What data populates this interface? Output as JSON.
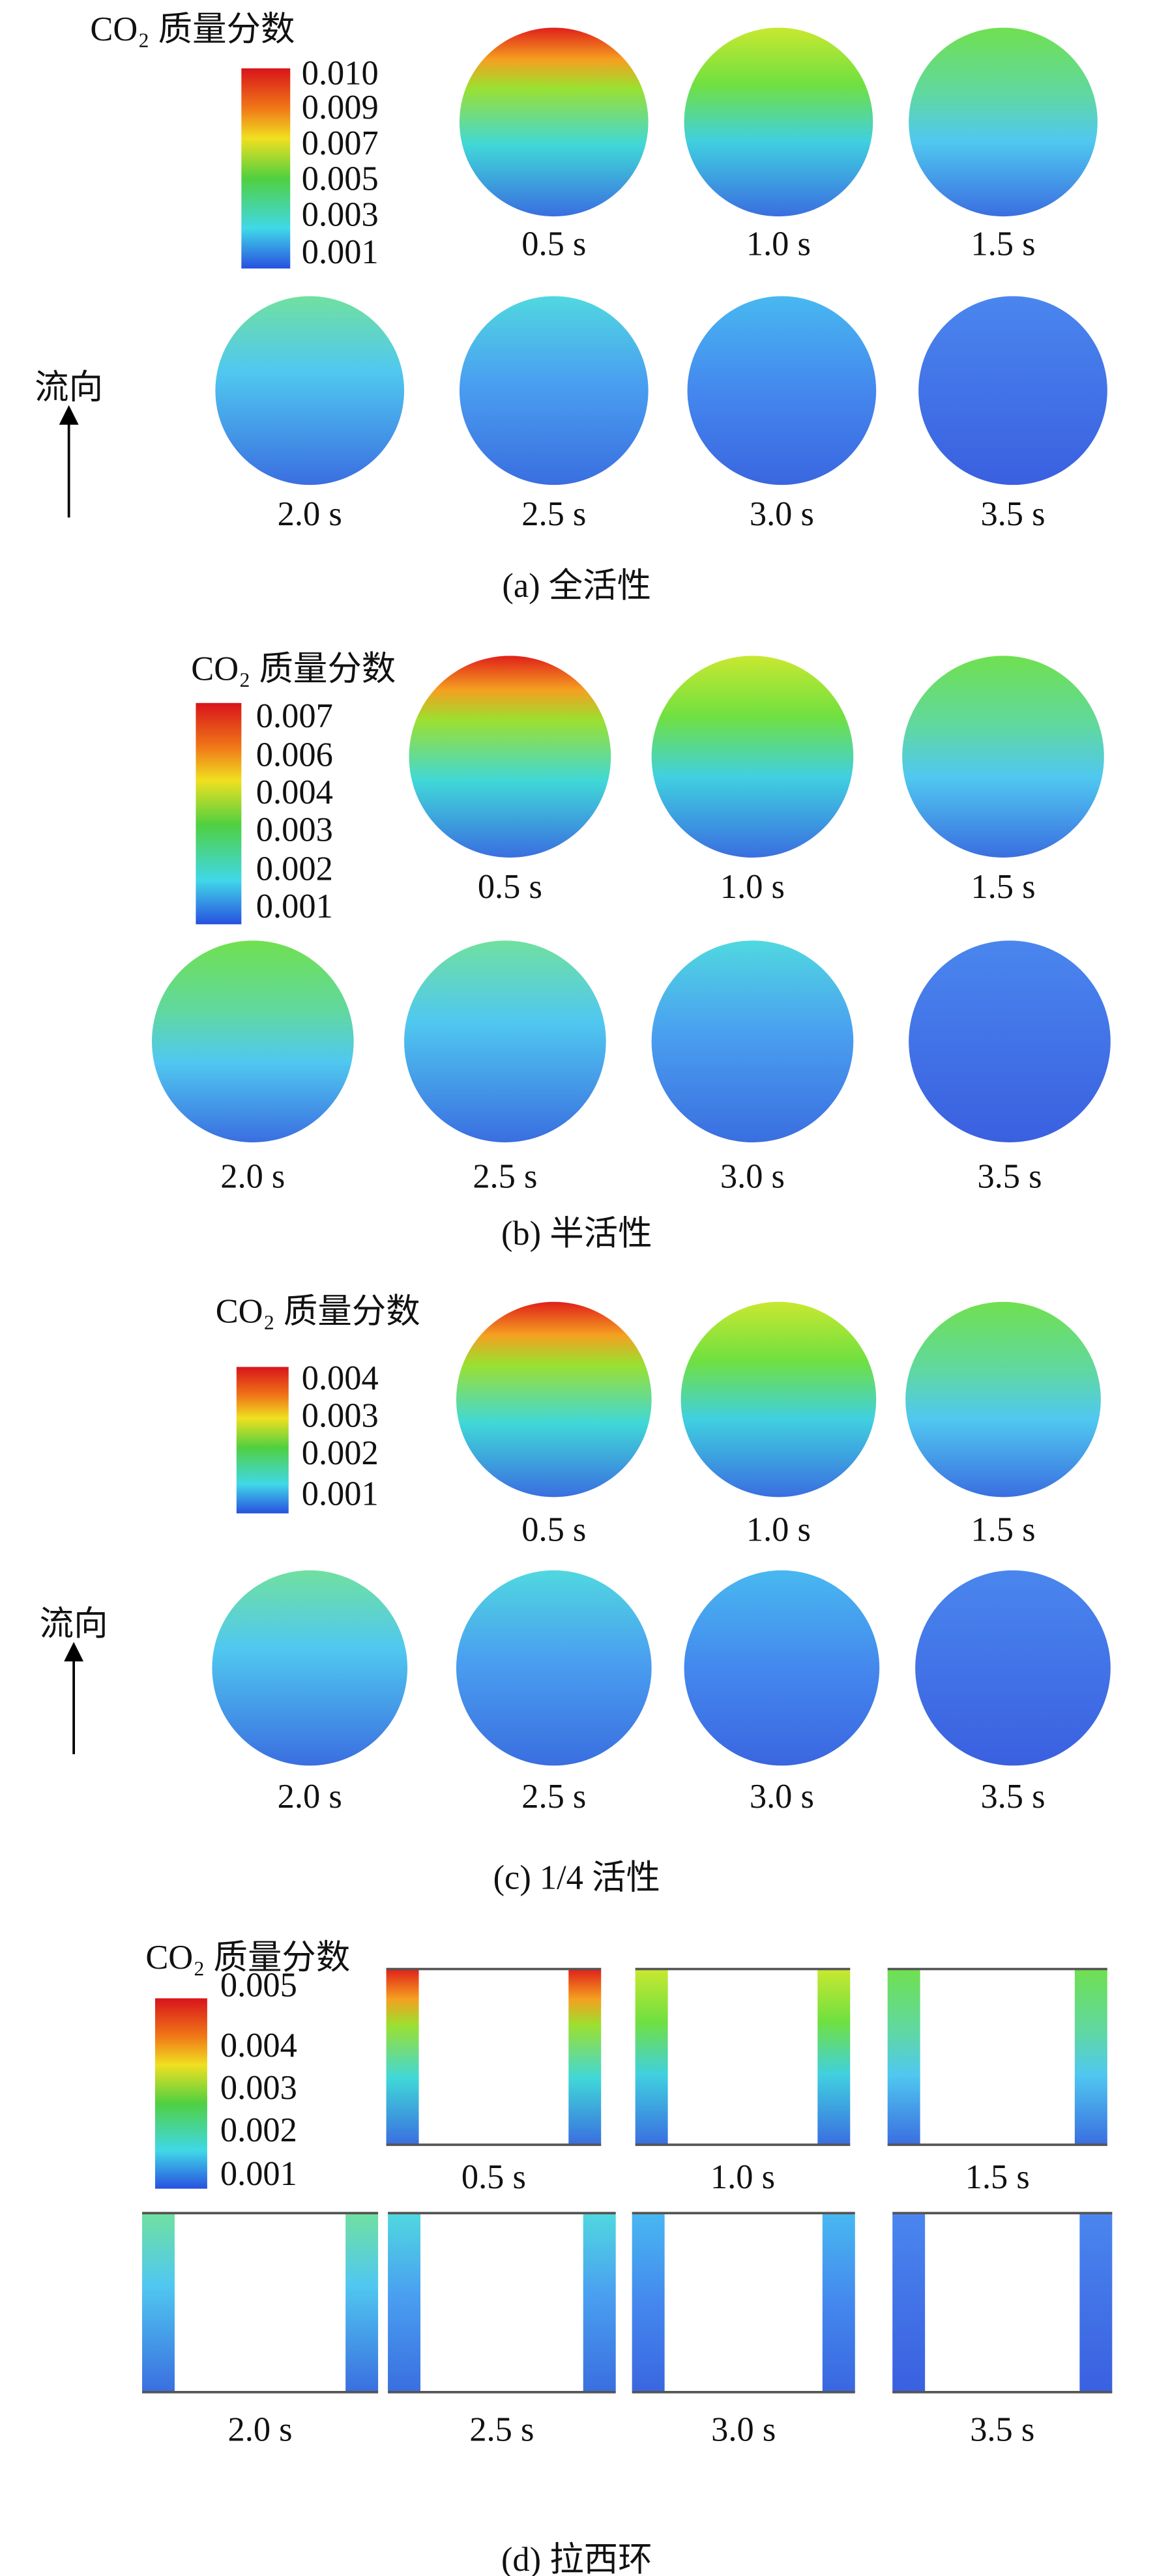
{
  "panels": [
    {
      "legend_title": "CO₂ 质量分数",
      "legend_ticks": [
        "0.010",
        "0.009",
        "0.007",
        "0.005",
        "0.003",
        "0.001"
      ],
      "times": [
        "0.5 s",
        "1.0 s",
        "1.5 s",
        "2.0 s",
        "2.5 s",
        "3.0 s",
        "3.5 s"
      ],
      "caption": "(a) 全活性",
      "flow_label": "流向"
    },
    {
      "legend_title": "CO₂ 质量分数",
      "legend_ticks": [
        "0.007",
        "0.006",
        "0.004",
        "0.003",
        "0.002",
        "0.001"
      ],
      "times": [
        "0.5 s",
        "1.0 s",
        "1.5 s",
        "2.0 s",
        "2.5 s",
        "3.0 s",
        "3.5 s"
      ],
      "caption": "(b) 半活性"
    },
    {
      "legend_title": "CO₂ 质量分数",
      "legend_ticks": [
        "0.004",
        "0.003",
        "0.002",
        "0.001"
      ],
      "times": [
        "0.5 s",
        "1.0 s",
        "1.5 s",
        "2.0 s",
        "2.5 s",
        "3.0 s",
        "3.5 s"
      ],
      "caption": "(c) 1/4 活性",
      "flow_label": "流向"
    },
    {
      "legend_title": "CO₂ 质量分数",
      "legend_ticks": [
        "0.005",
        "0.004",
        "0.003",
        "0.002",
        "0.001"
      ],
      "times": [
        "0.5 s",
        "1.0 s",
        "1.5 s",
        "2.0 s",
        "2.5 s",
        "3.0 s",
        "3.5 s"
      ],
      "caption": "(d) 拉西环"
    }
  ]
}
